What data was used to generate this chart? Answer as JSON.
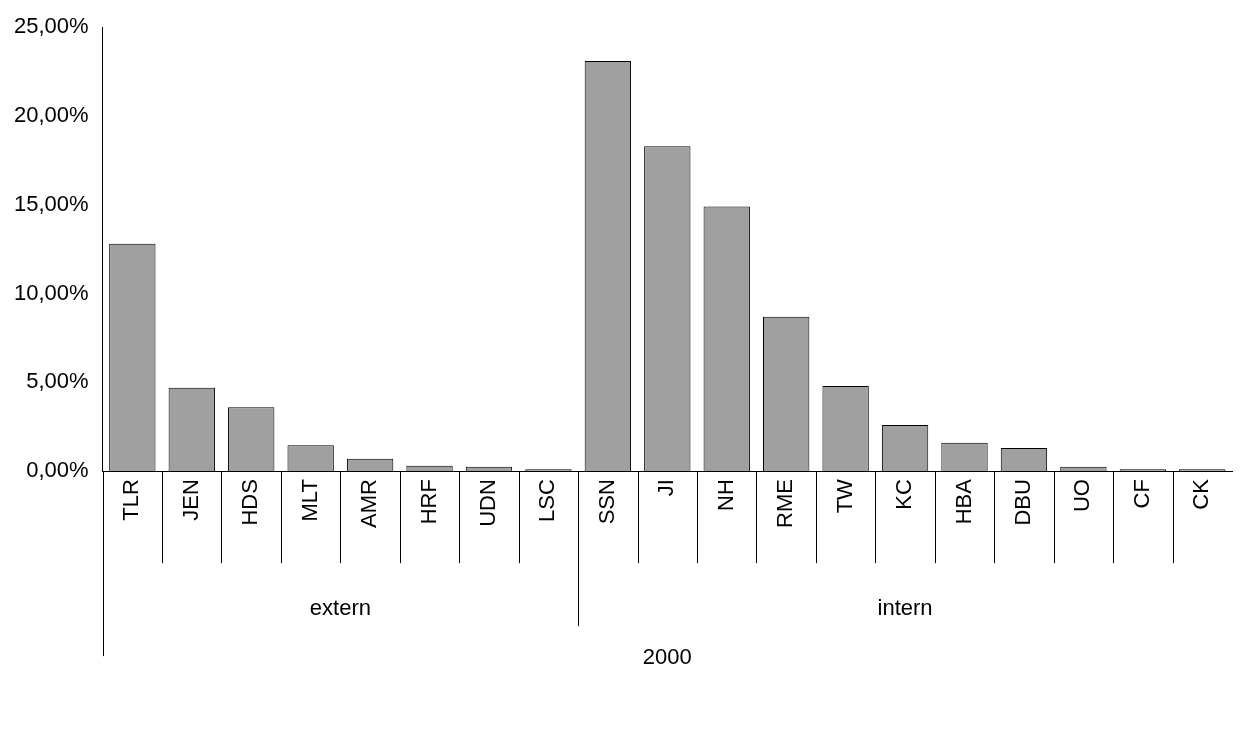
{
  "chart_data": {
    "type": "bar",
    "categories": [
      "TLR",
      "JEN",
      "HDS",
      "MLT",
      "AMR",
      "HRF",
      "UDN",
      "LSC",
      "SSN",
      "JI",
      "NH",
      "RME",
      "TW",
      "KC",
      "HBA",
      "DBU",
      "UO",
      "CF",
      "CK"
    ],
    "values": [
      12.8,
      4.7,
      3.6,
      1.45,
      0.7,
      0.3,
      0.25,
      0.1,
      23.1,
      18.3,
      14.9,
      8.7,
      4.8,
      2.6,
      1.6,
      1.3,
      0.25,
      0.1,
      0.1
    ],
    "color": "#a0a0a0",
    "ylim": [
      0,
      25
    ],
    "yticks": [
      {
        "value": 0,
        "label": "0,00%"
      },
      {
        "value": 5,
        "label": "5,00%"
      },
      {
        "value": 10,
        "label": "10,00%"
      },
      {
        "value": 15,
        "label": "15,00%"
      },
      {
        "value": 20,
        "label": "20,00%"
      },
      {
        "value": 25,
        "label": "25,00%"
      }
    ],
    "grid": false,
    "legend": false,
    "annotations": [
      "extern",
      "intern",
      "2000"
    ]
  }
}
